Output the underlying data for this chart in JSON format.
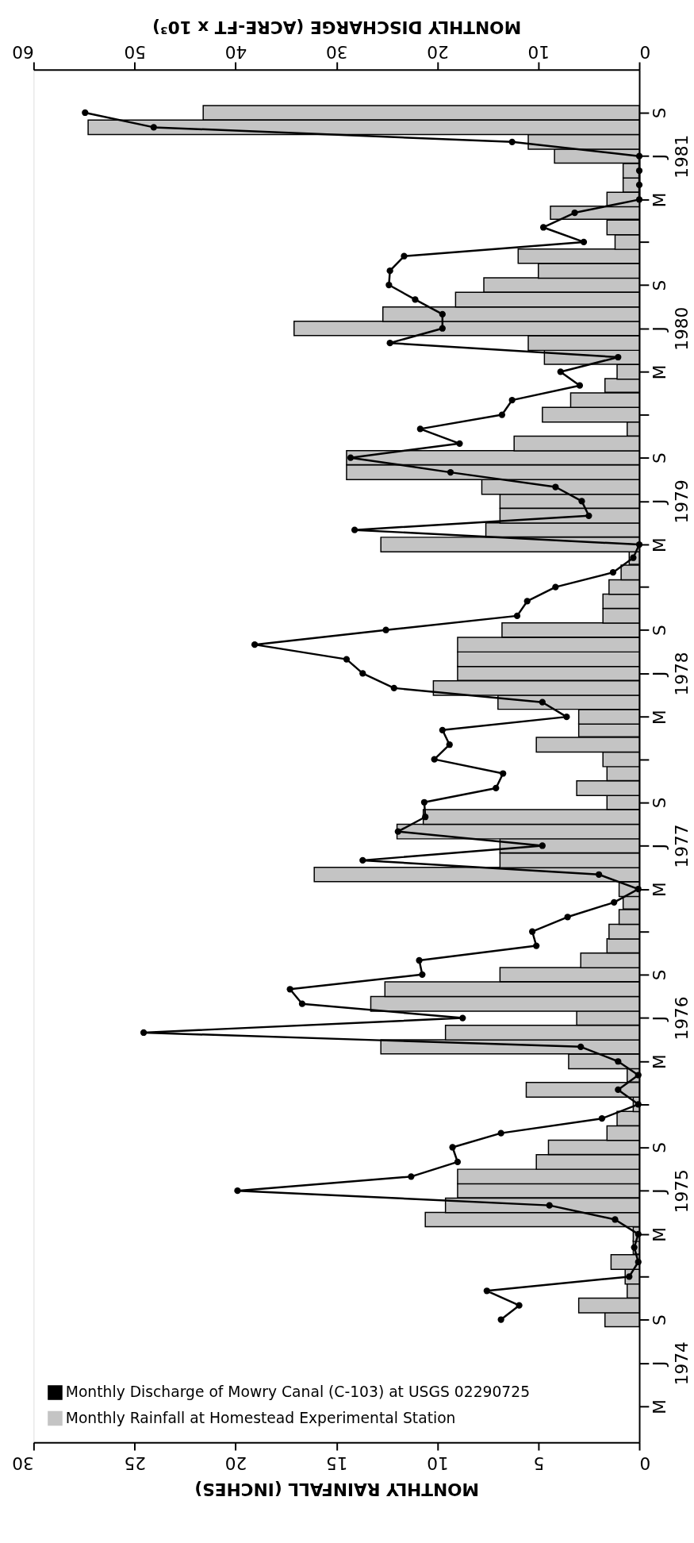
{
  "chart_data": {
    "type": "bar",
    "orientation": "horizontal",
    "xlabel": "MONTHLY RAINFALL (INCHES)",
    "x2label": "MONTHLY DISCHARGE (ACRE-FT x 10³)",
    "xlim": [
      30,
      0
    ],
    "xticks": [
      0,
      5,
      10,
      15,
      20,
      25,
      30
    ],
    "x2lim": [
      60,
      0
    ],
    "x2ticks": [
      0,
      10,
      20,
      30,
      40,
      50,
      60
    ],
    "ylim": [
      "1973-12-15",
      "1981-12-01"
    ],
    "yticks": [
      {
        "value": "1974-03-01",
        "label": "M"
      },
      {
        "value": "1974-06-01",
        "label": "J\n1974"
      },
      {
        "value": "1974-09-01",
        "label": "S"
      },
      {
        "value": "1974-12-01",
        "label": null
      },
      {
        "value": "1975-03-01",
        "label": "M"
      },
      {
        "value": "1975-06-01",
        "label": "J\n1975"
      },
      {
        "value": "1975-09-01",
        "label": "S"
      },
      {
        "value": "1975-12-01",
        "label": null
      },
      {
        "value": "1976-03-01",
        "label": "M"
      },
      {
        "value": "1976-06-01",
        "label": "J\n1976"
      },
      {
        "value": "1976-09-01",
        "label": "S"
      },
      {
        "value": "1976-12-01",
        "label": null
      },
      {
        "value": "1977-03-01",
        "label": "M"
      },
      {
        "value": "1977-06-01",
        "label": "J\n1977"
      },
      {
        "value": "1977-09-01",
        "label": "S"
      },
      {
        "value": "1977-12-01",
        "label": null
      },
      {
        "value": "1978-03-01",
        "label": "M"
      },
      {
        "value": "1978-06-01",
        "label": "J\n1978"
      },
      {
        "value": "1978-09-01",
        "label": "S"
      },
      {
        "value": "1978-12-01",
        "label": null
      },
      {
        "value": "1979-03-01",
        "label": "M"
      },
      {
        "value": "1979-06-01",
        "label": "J\n1979"
      },
      {
        "value": "1979-09-01",
        "label": "S"
      },
      {
        "value": "1979-12-01",
        "label": null
      },
      {
        "value": "1980-03-01",
        "label": "M"
      },
      {
        "value": "1980-06-01",
        "label": "J\n1980"
      },
      {
        "value": "1980-09-01",
        "label": "S"
      },
      {
        "value": "1980-12-01",
        "label": null
      },
      {
        "value": "1981-03-01",
        "label": "M"
      },
      {
        "value": "1981-06-01",
        "label": "J\n1981"
      },
      {
        "value": "1981-09-01",
        "label": "S"
      }
    ],
    "x": [
      "1974-09",
      "1974-10",
      "1974-11",
      "1974-12",
      "1975-01",
      "1975-02",
      "1975-03",
      "1975-04",
      "1975-05",
      "1975-06",
      "1975-07",
      "1975-08",
      "1975-09",
      "1975-10",
      "1975-11",
      "1975-12",
      "1976-01",
      "1976-02",
      "1976-03",
      "1976-04",
      "1976-05",
      "1976-06",
      "1976-07",
      "1976-08",
      "1976-09",
      "1976-10",
      "1976-11",
      "1976-12",
      "1977-01",
      "1977-02",
      "1977-03",
      "1977-04",
      "1977-05",
      "1977-06",
      "1977-07",
      "1977-08",
      "1977-09",
      "1977-10",
      "1977-11",
      "1977-12",
      "1978-01",
      "1978-02",
      "1978-03",
      "1978-04",
      "1978-05",
      "1978-06",
      "1978-07",
      "1978-08",
      "1978-09",
      "1978-10",
      "1978-11",
      "1978-12",
      "1979-01",
      "1979-02",
      "1979-03",
      "1979-04",
      "1979-05",
      "1979-06",
      "1979-07",
      "1979-08",
      "1979-09",
      "1979-10",
      "1979-11",
      "1979-12",
      "1980-01",
      "1980-02",
      "1980-03",
      "1980-04",
      "1980-05",
      "1980-06",
      "1980-07",
      "1980-08",
      "1980-09",
      "1980-10",
      "1980-11",
      "1980-12",
      "1981-01",
      "1981-02",
      "1981-03",
      "1981-04",
      "1981-05",
      "1981-06",
      "1981-07",
      "1981-08",
      "1981-09"
    ],
    "series": [
      {
        "name": "Monthly Discharge of Mowry Canal (C-103) at USGS 02290725",
        "type": "line",
        "axis": "x2",
        "color": "#000000",
        "values": [
          13.7,
          11.9,
          15.1,
          1.0,
          0.1,
          0.5,
          0.1,
          2.4,
          8.9,
          39.8,
          22.6,
          18.0,
          18.5,
          13.7,
          3.7,
          0.1,
          2.1,
          0.1,
          2.1,
          5.8,
          49.1,
          17.5,
          33.4,
          34.6,
          21.5,
          21.8,
          10.2,
          10.6,
          7.1,
          2.5,
          0.1,
          4.0,
          27.4,
          9.6,
          23.9,
          21.2,
          21.3,
          14.2,
          13.5,
          20.3,
          18.8,
          19.5,
          7.2,
          9.6,
          24.3,
          27.4,
          29.0,
          38.1,
          25.1,
          12.1,
          11.1,
          8.3,
          2.6,
          0.6,
          0.0,
          28.2,
          5.0,
          5.7,
          8.3,
          18.7,
          28.6,
          17.8,
          21.7,
          13.6,
          12.6,
          5.9,
          7.8,
          2.1,
          24.7,
          19.5,
          19.5,
          22.2,
          24.8,
          24.7,
          23.3,
          5.5,
          9.5,
          6.4,
          0.0,
          0.0,
          0.0,
          0.0,
          12.6,
          48.1,
          54.9
        ]
      },
      {
        "name": "Monthly Rainfall at Homestead Experimental Station",
        "color": "#c4c4c4",
        "values": [
          1.7,
          3.0,
          0.6,
          0.7,
          1.4,
          0.3,
          0.3,
          10.6,
          9.6,
          9.0,
          9.0,
          5.1,
          4.5,
          1.6,
          1.1,
          0.3,
          5.6,
          0.6,
          3.5,
          12.8,
          9.6,
          3.1,
          13.3,
          12.6,
          6.9,
          2.9,
          1.6,
          1.5,
          1.0,
          0.8,
          1.0,
          16.1,
          6.9,
          6.9,
          12.0,
          10.7,
          1.6,
          3.1,
          1.6,
          1.8,
          5.1,
          3.0,
          3.0,
          7.0,
          10.2,
          9.0,
          9.0,
          9.0,
          6.8,
          1.8,
          1.8,
          1.5,
          0.9,
          0.5,
          12.8,
          7.6,
          6.9,
          6.9,
          7.8,
          14.5,
          14.5,
          6.2,
          0.6,
          4.8,
          3.4,
          1.7,
          1.1,
          4.7,
          5.5,
          17.1,
          12.7,
          9.1,
          7.7,
          5.0,
          6.0,
          1.2,
          1.6,
          4.4,
          1.6,
          0.8,
          0.8,
          4.2,
          5.5,
          27.3,
          21.6
        ]
      }
    ],
    "marker": "circle",
    "legend": "bottom left",
    "grid": false
  }
}
